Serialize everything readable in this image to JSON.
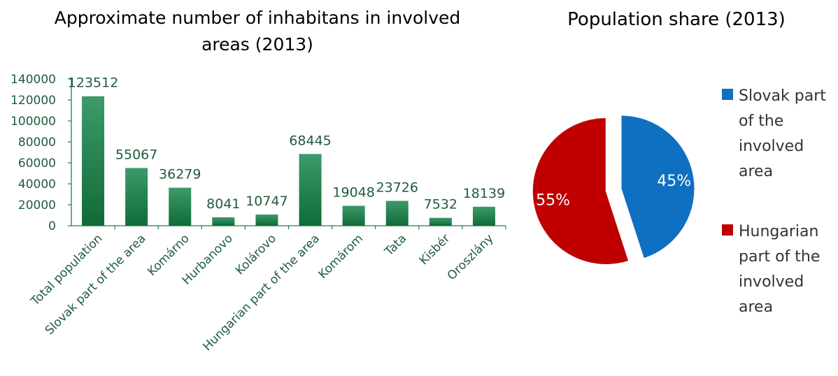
{
  "colors": {
    "bar_top": "#3d9a6a",
    "bar_bottom": "#0f6b37",
    "text_green": "#1f5c3c",
    "axis": "#2b7a4b",
    "slovak": "#0f6fc0",
    "hungarian": "#c00000"
  },
  "chart_data": [
    {
      "type": "bar",
      "title": "Approximate number of inhabitans in involved areas (2013)",
      "title_lines": [
        "Approximate number of inhabitans in involved",
        "areas (2013)"
      ],
      "categories": [
        "Total population",
        "Slovak part of the area",
        "Komárno",
        "Hurbanovo",
        "Kolárovo",
        "Hungarian part of the area",
        "Komárom",
        "Tata",
        "Kisbér",
        "Oroszlány"
      ],
      "values": [
        123512,
        55067,
        36279,
        8041,
        10747,
        68445,
        19048,
        23726,
        7532,
        18139
      ],
      "data_labels": [
        "123512",
        "55067",
        "36279",
        "8041",
        "10747",
        "68445",
        "19048",
        "23726",
        "7532",
        "18139"
      ],
      "ylim": [
        0,
        140000
      ],
      "y_ticks": [
        "0",
        "20000",
        "40000",
        "60000",
        "80000",
        "100000",
        "120000",
        "140000"
      ],
      "grid": false,
      "xlabel": "",
      "ylabel": ""
    },
    {
      "type": "pie",
      "title": "Population share (2013)",
      "slices": [
        {
          "name": "Slovak part of the involved area",
          "value": 45,
          "label": "45%",
          "exploded": false
        },
        {
          "name": "Hungarian part of the involved area",
          "value": 55,
          "label": "55%",
          "exploded": true
        }
      ],
      "legend": {
        "placement": "right",
        "entries": [
          {
            "lines": [
              "Slovak part",
              "of the",
              "involved",
              "area"
            ]
          },
          {
            "lines": [
              "Hungarian",
              "part of the",
              "involved",
              "area"
            ]
          }
        ]
      }
    }
  ]
}
